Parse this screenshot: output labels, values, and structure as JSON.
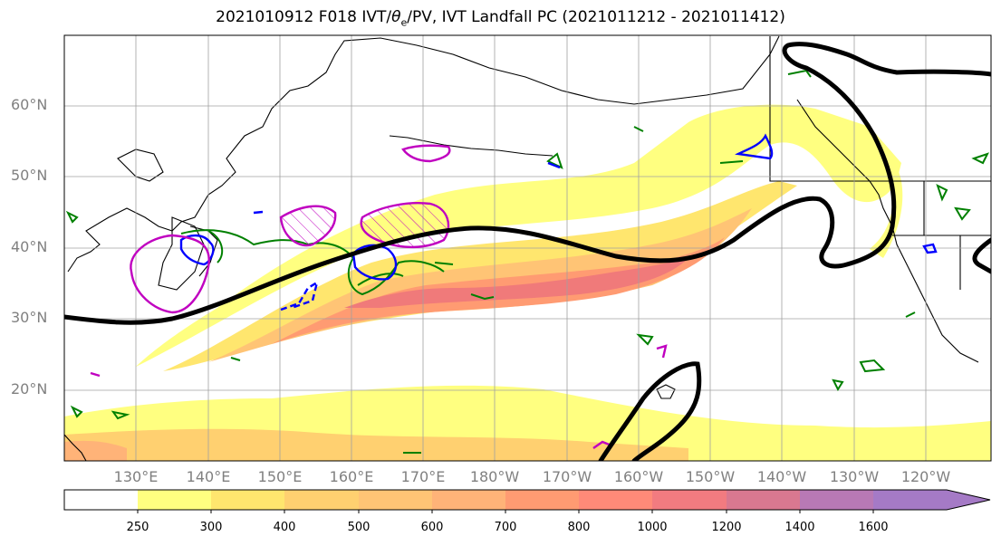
{
  "title": {
    "prefix": "2021010912 F018 IVT/",
    "theta": "θ",
    "theta_sub": "e",
    "suffix": "/PV, IVT Landfall PC (2021011212 - 2021011412)"
  },
  "map": {
    "lat_labels": [
      "60°N",
      "50°N",
      "40°N",
      "30°N",
      "20°N"
    ],
    "lon_labels": [
      "130°E",
      "140°E",
      "150°E",
      "160°E",
      "170°E",
      "180°W",
      "170°W",
      "160°W",
      "150°W",
      "140°W",
      "130°W",
      "120°W"
    ]
  },
  "colorbar": {
    "ticks": [
      "250",
      "300",
      "400",
      "500",
      "600",
      "700",
      "800",
      "1000",
      "1200",
      "1400",
      "1600"
    ],
    "colors": [
      "#ffff80",
      "#ffe66e",
      "#ffd070",
      "#ffc475",
      "#ffb378",
      "#ff9b72",
      "#ff8a78",
      "#f27b80",
      "#d97890",
      "#b879b5",
      "#a57ac6"
    ]
  },
  "colors": {
    "ivt_light": "#ffff80",
    "ivt_core": "#f07a7a",
    "coastline": "#000000",
    "landfall_contour": "#000000",
    "theta_e_contour": "#008000",
    "pv_contour": "#0000ff",
    "magenta_contour": "#c000c0"
  }
}
